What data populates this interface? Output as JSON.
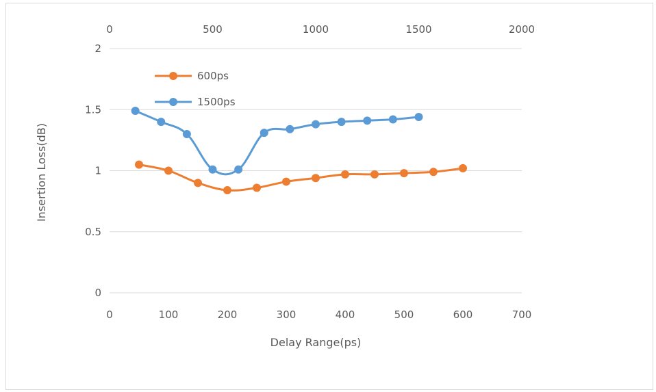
{
  "chart_data": {
    "type": "scatter",
    "xlabel": "Delay Range(ps)",
    "ylabel": "Insertion Loss(dB)",
    "x_primary": {
      "range": [
        0,
        700
      ],
      "ticks": [
        0,
        100,
        200,
        300,
        400,
        500,
        600,
        700
      ]
    },
    "x_secondary": {
      "range": [
        0,
        2000
      ],
      "ticks": [
        0,
        500,
        1000,
        1500,
        2000
      ]
    },
    "y": {
      "range": [
        0,
        2
      ],
      "ticks": [
        0,
        0.5,
        1,
        1.5,
        2
      ],
      "tick_labels": [
        "0",
        "0.5",
        "1",
        "1.5",
        "2"
      ]
    },
    "grid": "horizontal",
    "legend": "upper-left",
    "series": [
      {
        "name": "600ps",
        "color": "#ed7d31",
        "axis": "primary",
        "x": [
          50,
          100,
          150,
          200,
          250,
          300,
          350,
          400,
          450,
          500,
          550,
          600
        ],
        "y": [
          1.05,
          1.0,
          0.9,
          0.84,
          0.86,
          0.91,
          0.94,
          0.97,
          0.97,
          0.98,
          0.99,
          1.02
        ]
      },
      {
        "name": "1500ps",
        "color": "#5b9bd5",
        "axis": "secondary",
        "x": [
          125,
          250,
          375,
          500,
          625,
          750,
          875,
          1000,
          1125,
          1250,
          1375,
          1500
        ],
        "y": [
          1.49,
          1.4,
          1.3,
          1.01,
          1.01,
          1.31,
          1.34,
          1.38,
          1.4,
          1.41,
          1.42,
          1.44
        ]
      }
    ]
  }
}
